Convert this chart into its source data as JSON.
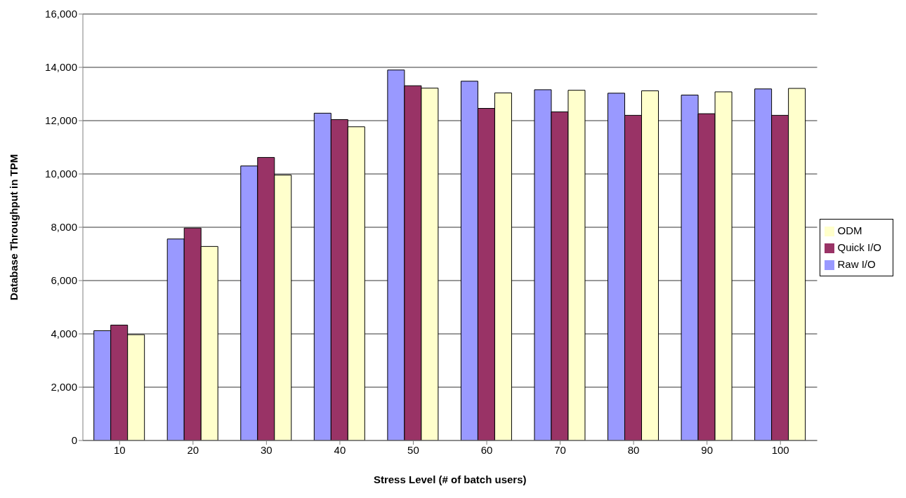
{
  "chart_data": {
    "type": "bar",
    "xlabel": "Stress Level (# of batch users)",
    "ylabel": "Database Throughput in TPM",
    "categories": [
      "10",
      "20",
      "30",
      "40",
      "50",
      "60",
      "70",
      "80",
      "90",
      "100"
    ],
    "series": [
      {
        "name": "Raw I/O",
        "color": "#9999ff",
        "values": [
          4120,
          7560,
          10300,
          12280,
          13900,
          13480,
          13160,
          13030,
          12960,
          13190
        ]
      },
      {
        "name": "Quick I/O",
        "color": "#993366",
        "values": [
          4330,
          7970,
          10620,
          12040,
          13310,
          12460,
          12330,
          12200,
          12260,
          12200
        ]
      },
      {
        "name": "ODM",
        "color": "#ffffcc",
        "values": [
          3970,
          7280,
          9960,
          11770,
          13220,
          13040,
          13140,
          13120,
          13080,
          13210
        ]
      }
    ],
    "ylim": [
      0,
      16000
    ],
    "yticks": [
      {
        "value": 0,
        "label": "0"
      },
      {
        "value": 2000,
        "label": "2,000"
      },
      {
        "value": 4000,
        "label": "4,000"
      },
      {
        "value": 6000,
        "label": "6,000"
      },
      {
        "value": 8000,
        "label": "8,000"
      },
      {
        "value": 10000,
        "label": "10,000"
      },
      {
        "value": 12000,
        "label": "12,000"
      },
      {
        "value": 14000,
        "label": "14,000"
      },
      {
        "value": 16000,
        "label": "16,000"
      }
    ],
    "grid": "y",
    "legend": "right"
  }
}
